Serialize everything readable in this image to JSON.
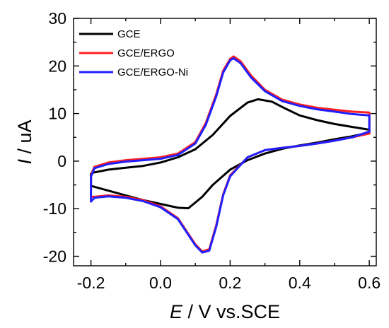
{
  "chart_data": {
    "type": "line",
    "title": "",
    "xlabel": {
      "symbol": "E",
      "rest": " / V vs.SCE"
    },
    "ylabel": {
      "symbol": "I",
      "rest": " / uA"
    },
    "xlim": [
      -0.25,
      0.62
    ],
    "ylim": [
      -22,
      30
    ],
    "xticks": [
      "-0.2",
      "0.0",
      "0.2",
      "0.4",
      "0.6"
    ],
    "yticks": [
      "-20",
      "-10",
      "0",
      "10",
      "20",
      "30"
    ],
    "grid": false,
    "legend_position": "top-left",
    "series": [
      {
        "name": "GCE",
        "color": "#000000",
        "x": [
          -0.2,
          -0.15,
          -0.1,
          -0.05,
          0.0,
          0.05,
          0.1,
          0.15,
          0.2,
          0.25,
          0.28,
          0.32,
          0.36,
          0.4,
          0.45,
          0.5,
          0.55,
          0.6,
          0.6,
          0.55,
          0.5,
          0.45,
          0.4,
          0.35,
          0.3,
          0.25,
          0.2,
          0.15,
          0.12,
          0.08,
          0.05,
          0.0,
          -0.05,
          -0.1,
          -0.15,
          -0.2,
          -0.2
        ],
        "y": [
          -2.5,
          -1.8,
          -1.4,
          -1.0,
          -0.3,
          0.8,
          2.5,
          5.5,
          9.5,
          12.3,
          13.0,
          12.5,
          11.0,
          9.6,
          8.6,
          7.8,
          7.2,
          6.6,
          6.0,
          5.2,
          4.6,
          3.9,
          3.3,
          2.6,
          1.6,
          0.2,
          -1.8,
          -5.0,
          -7.5,
          -9.9,
          -9.8,
          -9.0,
          -8.2,
          -7.2,
          -6.2,
          -5.2,
          -2.5
        ]
      },
      {
        "name": "GCE/ERGO",
        "color": "#ff1f1f",
        "x": [
          -0.2,
          -0.19,
          -0.15,
          -0.1,
          -0.05,
          0.0,
          0.05,
          0.1,
          0.13,
          0.16,
          0.18,
          0.2,
          0.21,
          0.23,
          0.26,
          0.3,
          0.35,
          0.4,
          0.45,
          0.5,
          0.55,
          0.6,
          0.6,
          0.55,
          0.5,
          0.45,
          0.4,
          0.35,
          0.3,
          0.25,
          0.2,
          0.18,
          0.16,
          0.14,
          0.12,
          0.1,
          0.05,
          0.0,
          -0.05,
          -0.1,
          -0.15,
          -0.19,
          -0.2,
          -0.2
        ],
        "y": [
          -3.0,
          -1.2,
          -0.3,
          0.2,
          0.5,
          0.8,
          1.6,
          4.0,
          8.0,
          14.0,
          19.0,
          21.5,
          22.0,
          21.0,
          18.0,
          15.0,
          12.9,
          11.9,
          11.2,
          10.8,
          10.4,
          10.2,
          5.8,
          5.0,
          4.3,
          3.7,
          3.2,
          2.8,
          2.3,
          0.8,
          -3.0,
          -7.0,
          -13.5,
          -18.5,
          -19.0,
          -17.5,
          -12.0,
          -9.5,
          -8.2,
          -7.5,
          -7.2,
          -7.5,
          -7.5,
          -3.0
        ]
      },
      {
        "name": "GCE/ERGO-Ni",
        "color": "#1f1fff",
        "x": [
          -0.2,
          -0.19,
          -0.15,
          -0.1,
          -0.05,
          0.0,
          0.05,
          0.1,
          0.13,
          0.16,
          0.18,
          0.2,
          0.21,
          0.23,
          0.26,
          0.3,
          0.35,
          0.4,
          0.45,
          0.5,
          0.55,
          0.6,
          0.6,
          0.55,
          0.5,
          0.45,
          0.4,
          0.35,
          0.3,
          0.25,
          0.2,
          0.18,
          0.16,
          0.14,
          0.12,
          0.1,
          0.05,
          0.0,
          -0.05,
          -0.1,
          -0.15,
          -0.19,
          -0.2,
          -0.2
        ],
        "y": [
          -3.3,
          -1.5,
          -0.6,
          -0.1,
          0.2,
          0.5,
          1.3,
          3.7,
          7.6,
          13.6,
          18.6,
          21.2,
          21.6,
          20.6,
          17.6,
          14.7,
          12.6,
          11.6,
          10.9,
          10.4,
          9.9,
          9.6,
          6.2,
          5.0,
          4.3,
          3.7,
          3.2,
          2.8,
          2.3,
          0.8,
          -3.2,
          -7.2,
          -13.8,
          -18.8,
          -19.2,
          -17.7,
          -12.2,
          -9.7,
          -8.4,
          -7.7,
          -7.4,
          -7.7,
          -8.5,
          -3.3
        ]
      }
    ]
  }
}
